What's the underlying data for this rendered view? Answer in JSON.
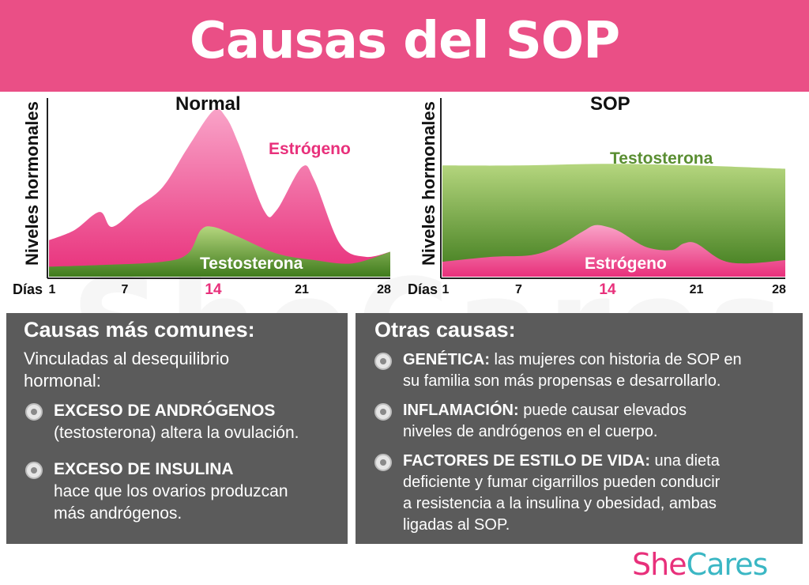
{
  "title": "Causas del SOP",
  "watermark": "SheCares",
  "colors": {
    "banner": "#ea4f86",
    "estrogen": "#e8307b",
    "testosterone": "#5a8e32",
    "panel": "#5b5b5b",
    "logo_she": "#e8307b",
    "logo_cares": "#3bb7c4"
  },
  "chart_data": [
    {
      "type": "area",
      "title": "Normal",
      "ylabel": "Niveles hormonales",
      "xlabel": "Días",
      "xticks": [
        1,
        7,
        14,
        21,
        28
      ],
      "highlight_tick": 14,
      "xlim": [
        1,
        28
      ],
      "ylim": [
        0,
        100
      ],
      "series": [
        {
          "name": "Estrógeno",
          "color": "#e8307b",
          "x": [
            1,
            3,
            5,
            6,
            8,
            10,
            12,
            14,
            15,
            16,
            18,
            19,
            21,
            22,
            24,
            26,
            28
          ],
          "y": [
            22,
            28,
            39,
            30,
            42,
            54,
            78,
            100,
            96,
            80,
            40,
            40,
            66,
            58,
            20,
            12,
            15
          ]
        },
        {
          "name": "Testosterona",
          "color": "#5a8e32",
          "x": [
            1,
            5,
            10,
            12,
            13,
            14,
            16,
            19,
            22,
            25,
            28
          ],
          "y": [
            6,
            7,
            9,
            14,
            28,
            30,
            24,
            14,
            10,
            8,
            15
          ]
        }
      ]
    },
    {
      "type": "area",
      "title": "SOP",
      "ylabel": "Niveles hormonales",
      "xlabel": "Días",
      "xticks": [
        1,
        7,
        14,
        21,
        28
      ],
      "highlight_tick": 14,
      "xlim": [
        1,
        28
      ],
      "ylim": [
        0,
        100
      ],
      "series": [
        {
          "name": "Testosterona",
          "color": "#5a8e32",
          "x": [
            1,
            7,
            14,
            21,
            28
          ],
          "y": [
            67,
            67,
            68,
            67,
            65
          ]
        },
        {
          "name": "Estrógeno",
          "color": "#e8307b",
          "x": [
            1,
            5,
            8,
            10,
            12,
            13,
            14,
            15,
            17,
            19,
            20,
            21,
            23,
            25,
            28
          ],
          "y": [
            9,
            12,
            13,
            18,
            27,
            31,
            30,
            27,
            18,
            16,
            20,
            20,
            10,
            8,
            10
          ]
        }
      ]
    }
  ],
  "left_panel": {
    "heading": "Causas más comunes:",
    "intro_1": "Vinculadas al desequilibrio",
    "intro_2": "hormonal:",
    "items": [
      {
        "bold": "EXCESO DE ANDRÓGENOS",
        "line_1": "(testosterona) altera la ovulación."
      },
      {
        "bold": "EXCESO DE INSULINA",
        "line_1": "hace que los ovarios produzcan",
        "line_2": "más andrógenos."
      }
    ]
  },
  "right_panel": {
    "heading": "Otras causas:",
    "items": [
      {
        "bold": "GENÉTICA:",
        "line_1": " las mujeres con historia de SOP en",
        "line_2": "su familia son más propensas e desarrollarlo."
      },
      {
        "bold": "INFLAMACIÓN:",
        "line_1": " puede causar elevados",
        "line_2": "niveles de andrógenos en el cuerpo."
      },
      {
        "bold": "FACTORES DE ESTILO DE VIDA:",
        "line_1": " una dieta",
        "line_2": "deficiente y fumar cigarrillos pueden conducir",
        "line_3": "a resistencia a la insulina y obesidad, ambas",
        "line_4": "ligadas al SOP."
      }
    ]
  },
  "logo": {
    "she": "She",
    "cares": "Cares"
  }
}
